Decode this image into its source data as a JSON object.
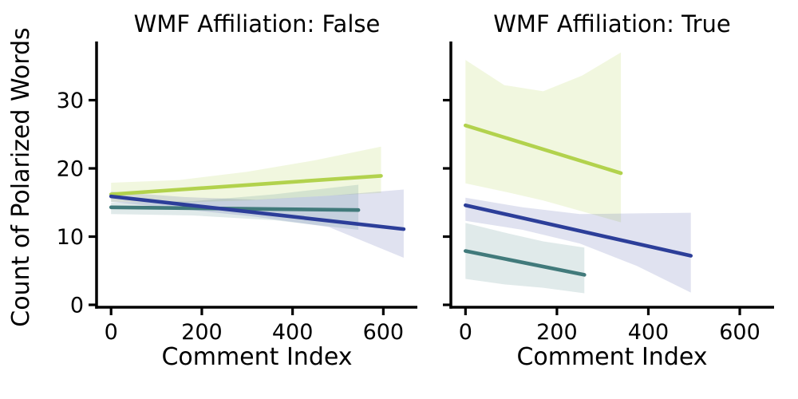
{
  "figure": {
    "background_color": "#ffffff",
    "text_color": "#000000",
    "axis_color": "#000000"
  },
  "chart_data": {
    "type": "line",
    "subtype": "regression-with-confidence-bands",
    "xlabel": "Comment Index",
    "ylabel": "Count of Polarized Words",
    "xticks": [
      "0",
      "200",
      "400",
      "600"
    ],
    "xtick_values": [
      0,
      200,
      400,
      600
    ],
    "yticks": [
      "0",
      "10",
      "20",
      "30"
    ],
    "ytick_values": [
      0,
      10,
      20,
      30
    ],
    "xlim": [
      -32,
      675
    ],
    "ylim": [
      -0.35,
      38.6
    ],
    "grid": false,
    "legend": null,
    "panels": [
      {
        "title": "WMF Affiliation: False",
        "series": [
          {
            "id": "green",
            "color": "#b2d24d",
            "band_color": "rgba(178, 210, 77, 0.18)",
            "line": {
              "x": [
                0,
                595
              ],
              "y": [
                16.2,
                18.9
              ]
            },
            "band": {
              "x": [
                0,
                150,
                300,
                450,
                595
              ],
              "top": [
                17.9,
                18.3,
                19.5,
                21.2,
                23.2
              ],
              "bottom": [
                15.1,
                15.0,
                15.3,
                15.9,
                16.4
              ]
            }
          },
          {
            "id": "teal",
            "color": "#417a7b",
            "band_color": "rgba(65, 122, 123, 0.16)",
            "line": {
              "x": [
                0,
                545
              ],
              "y": [
                14.3,
                13.9
              ]
            },
            "band": {
              "x": [
                0,
                180,
                360,
                545
              ],
              "top": [
                15.0,
                15.2,
                16.2,
                17.6
              ],
              "bottom": [
                13.3,
                13.1,
                12.4,
                11.0
              ]
            }
          },
          {
            "id": "blue",
            "color": "#2c3e99",
            "band_color": "rgba(44, 62, 153, 0.15)",
            "line": {
              "x": [
                0,
                645
              ],
              "y": [
                15.9,
                11.1
              ]
            },
            "band": {
              "x": [
                0,
                160,
                320,
                480,
                645
              ],
              "top": [
                16.6,
                15.8,
                15.4,
                16.0,
                16.9
              ],
              "bottom": [
                15.1,
                14.0,
                12.9,
                11.4,
                6.9
              ]
            }
          }
        ]
      },
      {
        "title": "WMF Affiliation: True",
        "series": [
          {
            "id": "green",
            "color": "#b2d24d",
            "band_color": "rgba(178, 210, 77, 0.18)",
            "line": {
              "x": [
                0,
                340
              ],
              "y": [
                26.3,
                19.3
              ]
            },
            "band": {
              "x": [
                0,
                85,
                170,
                255,
                340
              ],
              "top": [
                35.9,
                32.2,
                31.3,
                33.6,
                37.0
              ],
              "bottom": [
                17.8,
                16.6,
                15.3,
                13.7,
                12.1
              ]
            }
          },
          {
            "id": "teal",
            "color": "#417a7b",
            "band_color": "rgba(65, 122, 123, 0.16)",
            "line": {
              "x": [
                0,
                260
              ],
              "y": [
                7.9,
                4.4
              ]
            },
            "band": {
              "x": [
                0,
                85,
                170,
                260
              ],
              "top": [
                12.0,
                10.6,
                9.3,
                8.4
              ],
              "bottom": [
                3.8,
                3.0,
                2.5,
                1.7
              ]
            }
          },
          {
            "id": "blue",
            "color": "#2c3e99",
            "band_color": "rgba(44, 62, 153, 0.15)",
            "line": {
              "x": [
                0,
                493
              ],
              "y": [
                14.6,
                7.2
              ]
            },
            "band": {
              "x": [
                0,
                125,
                250,
                375,
                493
              ],
              "top": [
                15.7,
                14.3,
                13.3,
                13.4,
                13.5
              ],
              "bottom": [
                12.3,
                11.0,
                9.0,
                5.7,
                1.8
              ]
            }
          }
        ]
      }
    ]
  }
}
